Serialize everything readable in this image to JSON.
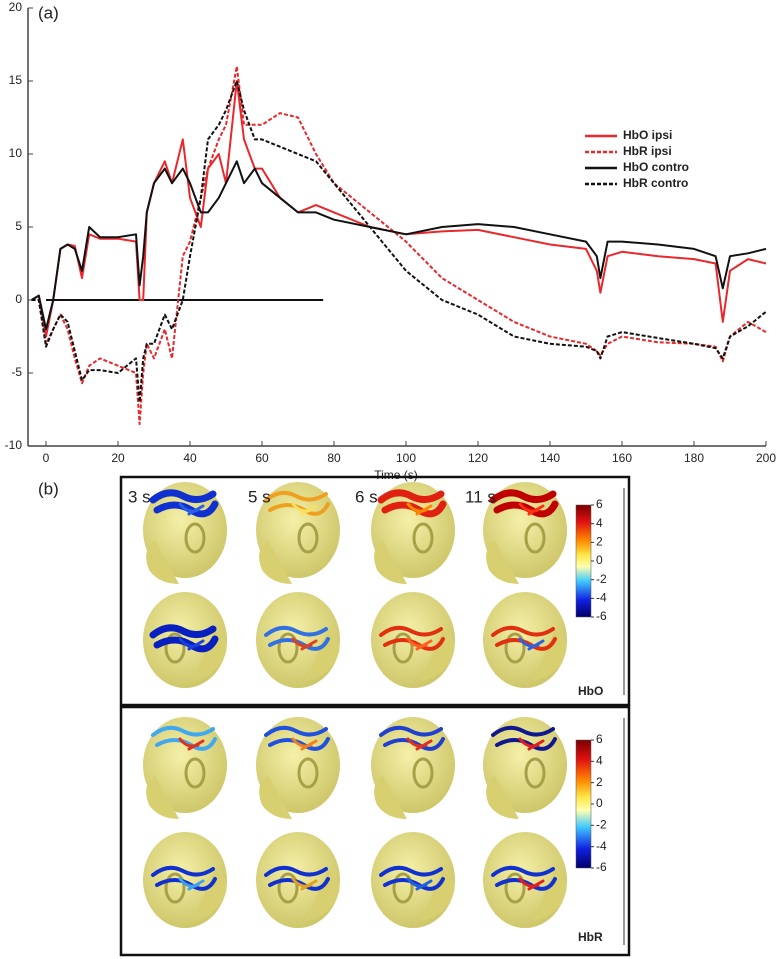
{
  "chart_data": {
    "type": "line",
    "panel_label": "(a)",
    "xlabel": "Time (s)",
    "x": [
      -4,
      -2,
      0,
      2,
      4,
      6,
      8,
      10,
      12,
      15,
      20,
      25,
      26,
      27,
      28,
      30,
      33,
      35,
      38,
      40,
      43,
      45,
      48,
      50,
      53,
      55,
      58,
      60,
      65,
      70,
      75,
      80,
      90,
      100,
      110,
      120,
      130,
      140,
      150,
      153,
      154,
      156,
      160,
      170,
      180,
      186,
      188,
      190,
      195,
      200
    ],
    "series": [
      {
        "name": "HbO ipsi",
        "color": "#e8282b",
        "linestyle": "solid",
        "values": [
          0,
          0.3,
          -2.5,
          0,
          3.5,
          3.8,
          3.7,
          1.5,
          4.5,
          4.2,
          4.2,
          4,
          0,
          0,
          6,
          8,
          9.5,
          8,
          11,
          7,
          5,
          9,
          10,
          8,
          15,
          11,
          9,
          9,
          7,
          6,
          6.5,
          6,
          5,
          4.5,
          4.7,
          4.8,
          4.3,
          3.8,
          3.5,
          2,
          0.5,
          3,
          3.3,
          3,
          2.8,
          2.5,
          -1.5,
          2,
          2.8,
          2.5
        ]
      },
      {
        "name": "HbR ipsi",
        "color": "#e8282b",
        "linestyle": "dashed",
        "values": [
          0,
          0,
          -3,
          -2,
          -1,
          -2,
          -4,
          -5.7,
          -4.5,
          -4,
          -4.5,
          -5,
          -8.5,
          -5,
          -3,
          -4,
          -2,
          -4,
          3,
          4,
          7,
          9,
          11,
          12,
          16,
          12,
          12,
          12,
          12.8,
          12.5,
          10,
          8,
          6,
          4,
          1.5,
          0,
          -1.5,
          -2.5,
          -3,
          -3.5,
          -3.8,
          -3,
          -2.5,
          -2.9,
          -3,
          -3.2,
          -4.2,
          -2.5,
          -1.5,
          -2.2
        ]
      },
      {
        "name": "HbO contro",
        "color": "#111111",
        "linestyle": "solid",
        "values": [
          0,
          0.3,
          -2,
          0,
          3.5,
          3.8,
          3.5,
          2,
          5,
          4.3,
          4.3,
          4.5,
          1,
          3,
          6,
          8,
          9,
          8,
          9,
          8,
          6,
          6,
          7,
          8,
          9.5,
          8,
          9,
          8,
          7,
          6,
          6,
          5.5,
          5,
          4.5,
          5,
          5.2,
          5,
          4.5,
          4,
          3,
          1.5,
          4,
          4,
          3.8,
          3.5,
          3,
          0.8,
          3,
          3.2,
          3.5
        ]
      },
      {
        "name": "HbR contro",
        "color": "#111111",
        "linestyle": "dashed",
        "values": [
          0,
          0,
          -3.2,
          -2,
          -1,
          -1.5,
          -3.5,
          -5.5,
          -4.8,
          -4.8,
          -5,
          -4,
          -7,
          -4,
          -3,
          -3,
          -1,
          -2,
          0,
          3,
          7,
          11,
          12,
          13,
          15,
          13,
          11,
          11,
          10.5,
          10,
          9.5,
          8,
          5,
          2,
          0,
          -1,
          -2.5,
          -3,
          -3.2,
          -3.5,
          -4,
          -2.5,
          -2.2,
          -2.6,
          -3,
          -3.3,
          -4,
          -2.5,
          -1.8,
          -0.8
        ]
      }
    ],
    "hline": {
      "y": 0,
      "xmin": 0,
      "xmax": 77
    },
    "xlim": [
      -5,
      200
    ],
    "xticks": [
      0,
      20,
      40,
      60,
      80,
      100,
      120,
      140,
      160,
      180,
      200
    ],
    "ylim": [
      -10,
      20
    ],
    "yticks": [
      -10,
      -5,
      0,
      5,
      10,
      15,
      20
    ],
    "legend": "upper right"
  },
  "panel_b": {
    "panel_label": "(b)",
    "times": [
      "3 s",
      "5 s",
      "6 s",
      "11 s"
    ],
    "groups": [
      "HbO",
      "HbR"
    ],
    "colorbar": {
      "lim": [
        -6,
        6
      ],
      "ticks": [
        6,
        4,
        2,
        0,
        -2,
        -4,
        -6
      ]
    }
  }
}
